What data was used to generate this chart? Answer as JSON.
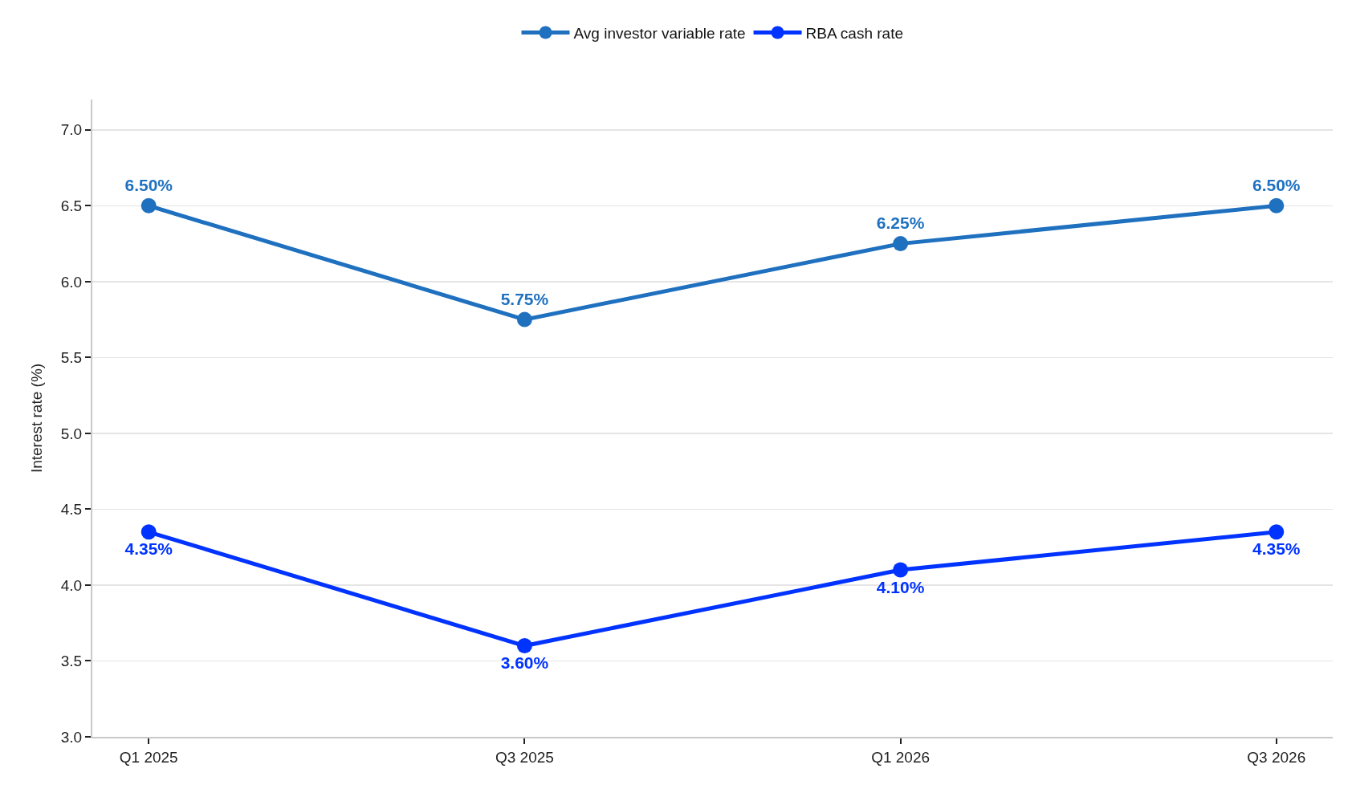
{
  "chart_data": {
    "type": "line",
    "categories": [
      "Q1 2025",
      "Q3 2025",
      "Q1 2026",
      "Q3 2026"
    ],
    "series": [
      {
        "name": "Avg investor variable rate",
        "color": "#1f71c0",
        "values": [
          6.5,
          5.75,
          6.25,
          6.5
        ],
        "value_labels": [
          "6.50%",
          "5.75%",
          "6.25%",
          "6.50%"
        ]
      },
      {
        "name": "RBA cash rate",
        "color": "#0033ff",
        "values": [
          4.35,
          3.6,
          4.1,
          4.35
        ],
        "value_labels": [
          "4.35%",
          "3.60%",
          "4.10%",
          "4.35%"
        ]
      }
    ],
    "ylabel": "Interest rate (%)",
    "ylim": [
      3.0,
      7.2
    ],
    "yticks": [
      {
        "value": 3,
        "label": "3.0"
      },
      {
        "value": 3.5,
        "label": "3.5"
      },
      {
        "value": 4,
        "label": "4.0"
      },
      {
        "value": 4.5,
        "label": "4.5"
      },
      {
        "value": 5,
        "label": "5.0"
      },
      {
        "value": 5.5,
        "label": "5.5"
      },
      {
        "value": 6,
        "label": "6.0"
      },
      {
        "value": 6.5,
        "label": "6.5"
      },
      {
        "value": 7,
        "label": "7.0"
      }
    ],
    "grid": "y",
    "legend": "top",
    "marker": "circle",
    "line_style": "solid"
  }
}
